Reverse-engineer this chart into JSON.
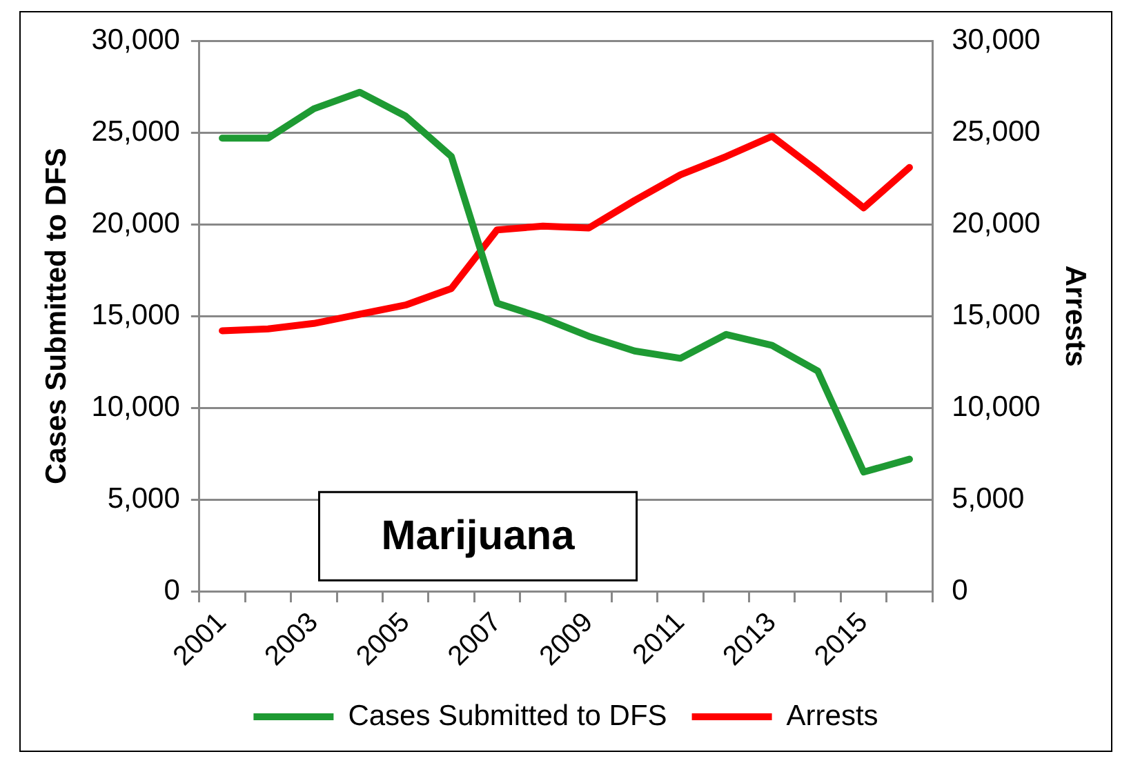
{
  "chart_data": {
    "type": "line",
    "categories": [
      "2001",
      null,
      "2003",
      null,
      "2005",
      null,
      "2007",
      null,
      "2009",
      null,
      "2011",
      null,
      "2013",
      null,
      "2015",
      null
    ],
    "ylabel": "Cases Submitted to DFS",
    "y2label": "Arrests",
    "annotations": [
      "Marijuana"
    ],
    "series": [
      {
        "name": "Cases Submitted to DFS",
        "color": "#1e9a33",
        "values": [
          24700,
          24700,
          26300,
          27200,
          25900,
          23700,
          15700,
          14900,
          13900,
          13100,
          12700,
          14000,
          13400,
          12000,
          6500,
          7200
        ]
      },
      {
        "name": "Arrests",
        "color": "#ff0000",
        "axis": "y2",
        "values": [
          14200,
          14300,
          14600,
          15100,
          15600,
          16500,
          19700,
          19900,
          19800,
          21300,
          22700,
          23700,
          24800,
          22900,
          20900,
          23100
        ]
      }
    ],
    "ylim": [
      0,
      30000
    ],
    "yticks": [
      0,
      {
        "value": 5000,
        "label": "5,000"
      },
      {
        "value": 10000,
        "label": "10,000"
      },
      {
        "value": 15000,
        "label": "15,000"
      },
      {
        "value": 20000,
        "label": "20,000"
      },
      {
        "value": 25000,
        "label": "25,000"
      },
      {
        "value": 30000,
        "label": "30,000"
      }
    ],
    "y2lim": [
      0,
      30000
    ],
    "y2ticks": [
      0,
      {
        "value": 5000,
        "label": "5,000"
      },
      {
        "value": 10000,
        "label": "10,000"
      },
      {
        "value": 15000,
        "label": "15,000"
      },
      {
        "value": 20000,
        "label": "20,000"
      },
      {
        "value": 25000,
        "label": "25,000"
      },
      {
        "value": 30000,
        "label": "30,000"
      }
    ],
    "grid": "y",
    "legend": "bottom",
    "marker": "none",
    "line_style": "solid"
  }
}
